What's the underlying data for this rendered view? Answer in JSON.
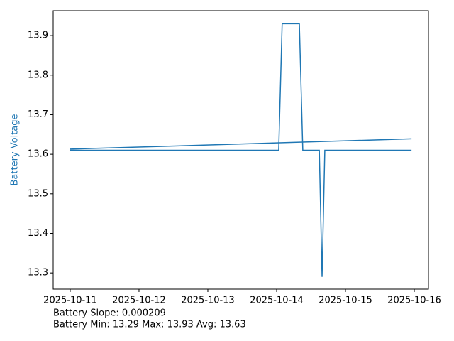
{
  "chart_data": {
    "type": "line",
    "y_label": "Battery Voltage",
    "y_label_color": "#1f77b4",
    "annotations": [
      "Battery Slope: 0.000209",
      "Battery Min: 13.29 Max: 13.93 Avg: 13.63"
    ],
    "series": [
      {
        "color": "#1f77b4",
        "x": [
          0,
          3.03,
          3.08,
          3.33,
          3.38,
          3.62,
          3.66,
          3.7,
          4.96
        ],
        "values": [
          13.61,
          13.61,
          13.93,
          13.93,
          13.61,
          13.61,
          13.29,
          13.61,
          13.61
        ]
      },
      {
        "color": "#1f77b4",
        "x": [
          0,
          4.96
        ],
        "values": [
          13.613,
          13.639
        ]
      }
    ],
    "xlim": [
      -0.247,
      5.206
    ],
    "xticks": [
      {
        "value": 0,
        "label": "2025-10-11"
      },
      {
        "value": 1,
        "label": "2025-10-12"
      },
      {
        "value": 2,
        "label": "2025-10-13"
      },
      {
        "value": 3,
        "label": "2025-10-14"
      },
      {
        "value": 4,
        "label": "2025-10-15"
      },
      {
        "value": 5,
        "label": "2025-10-16"
      }
    ],
    "ylim": [
      13.259,
      13.963
    ],
    "yticks": [
      13.3,
      13.4,
      13.5,
      13.6,
      13.7,
      13.8,
      13.9
    ]
  }
}
